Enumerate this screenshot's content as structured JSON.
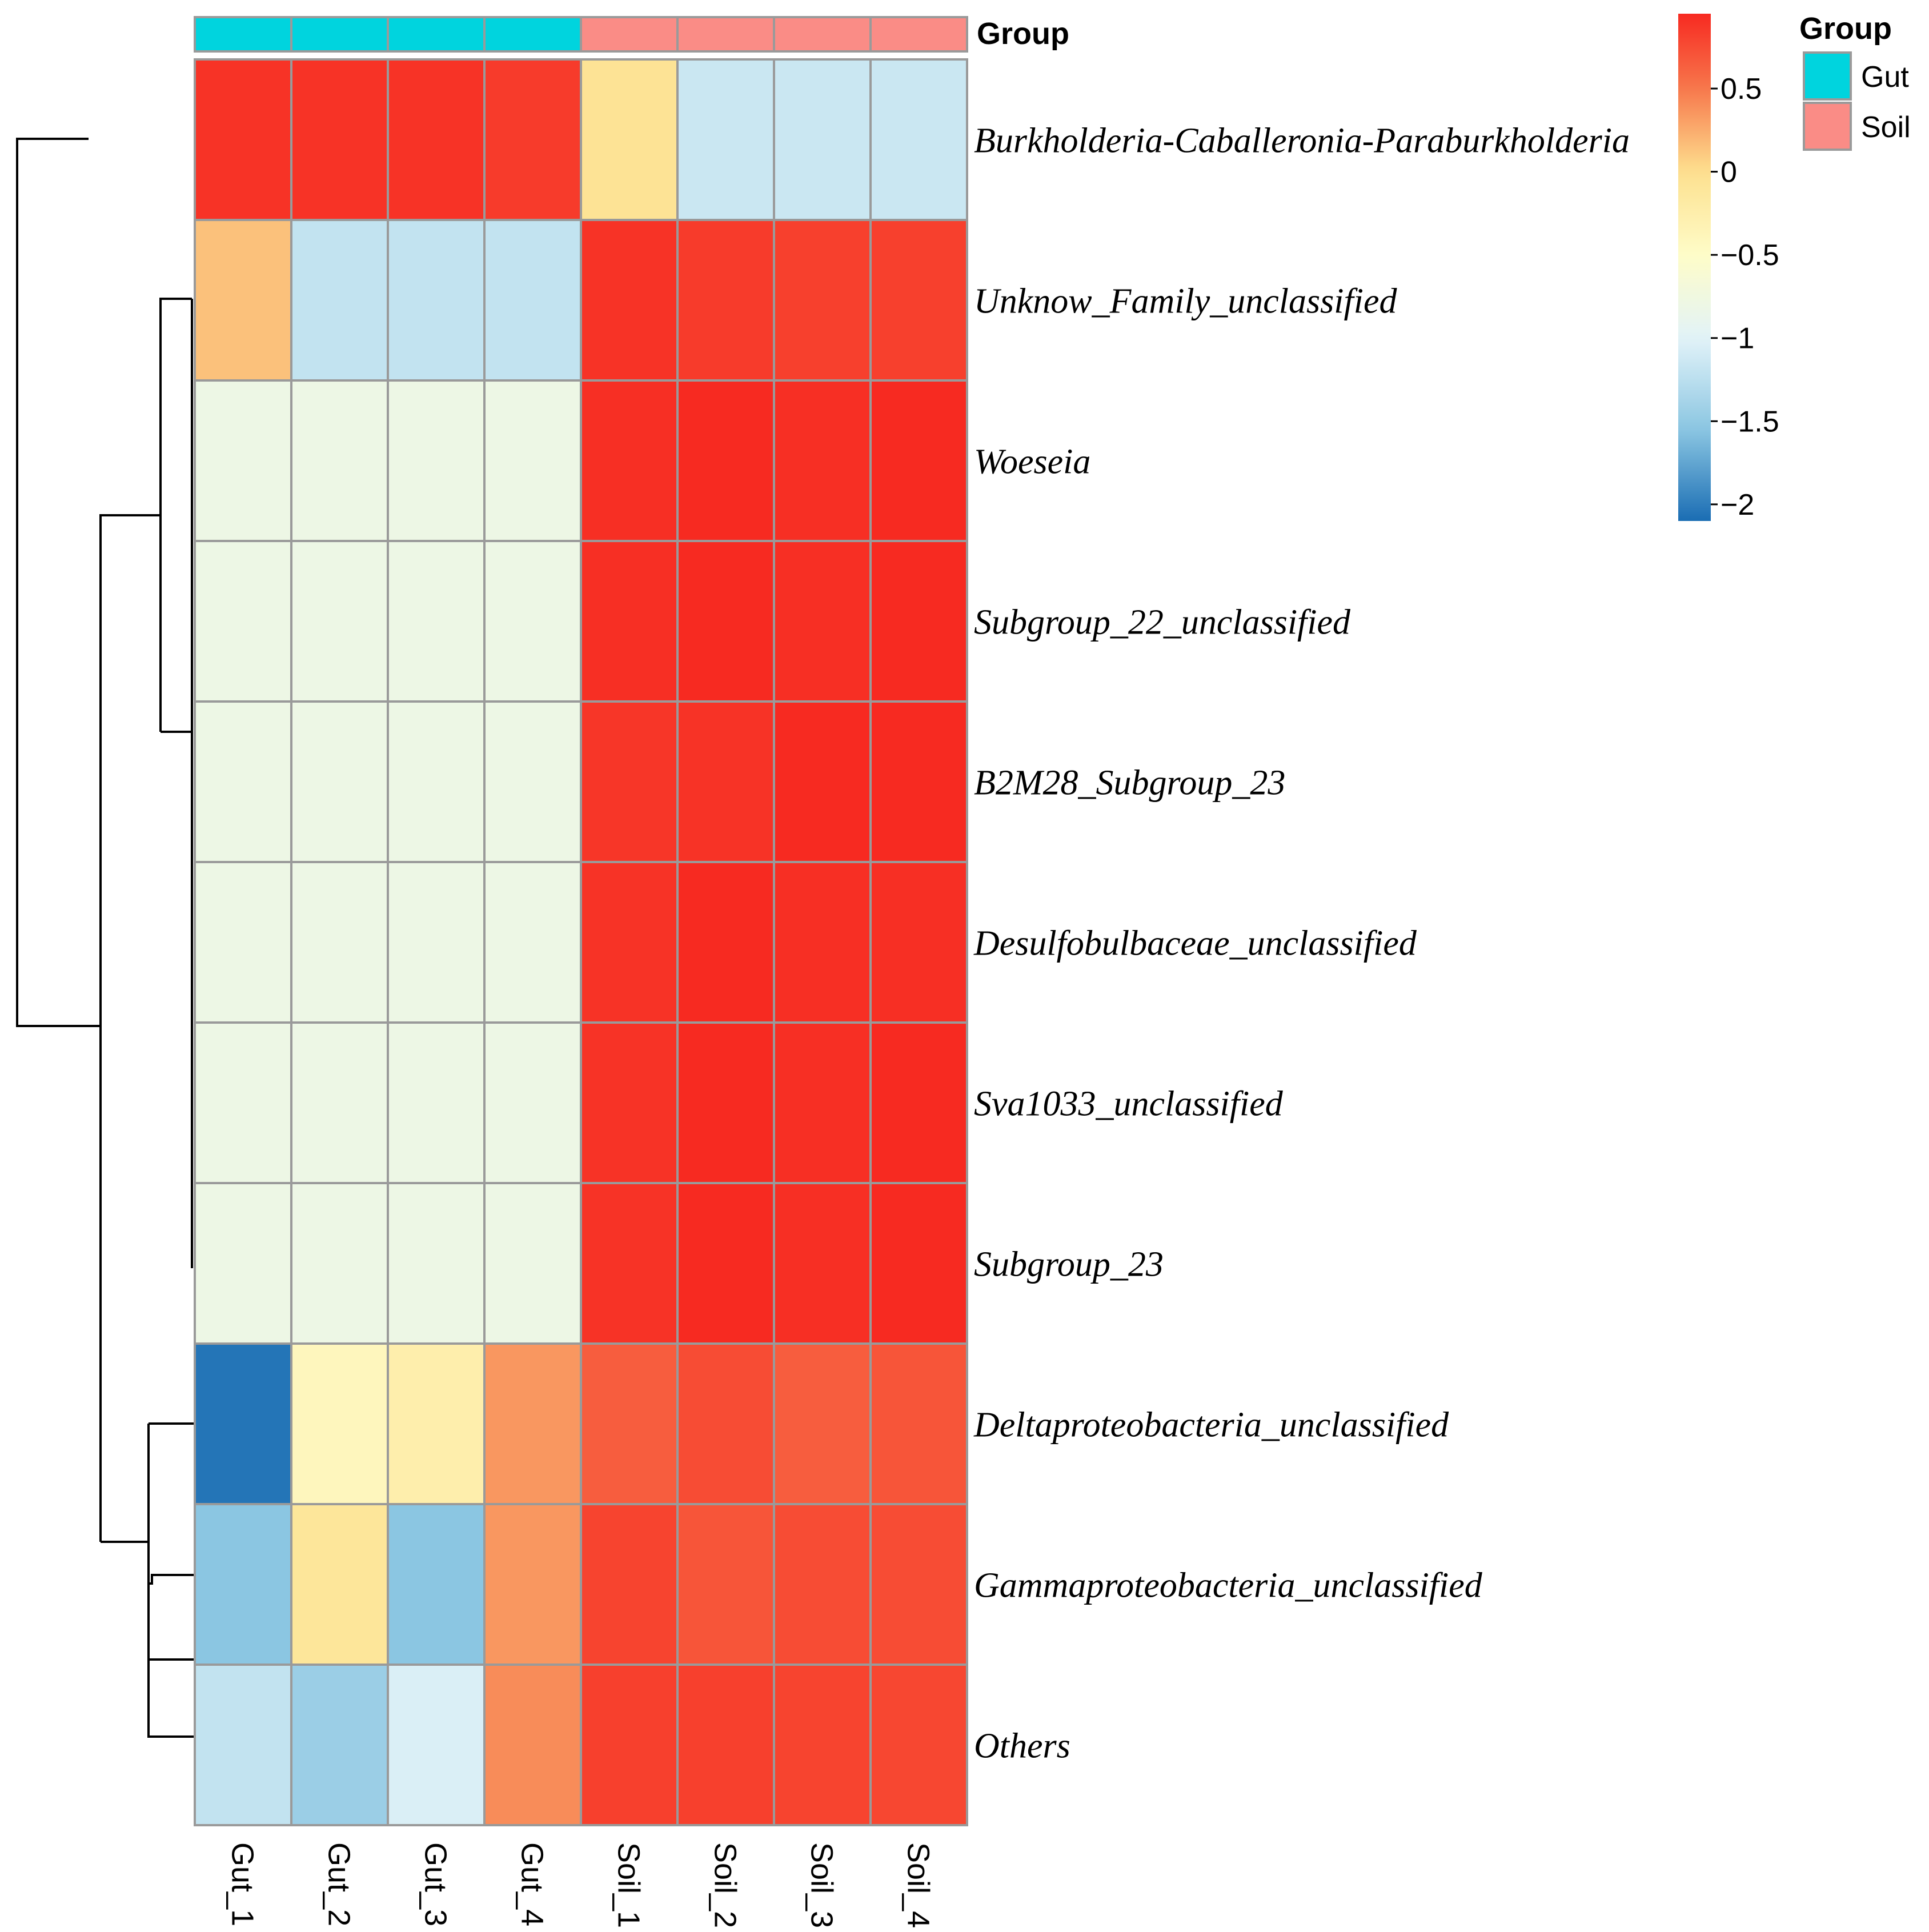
{
  "chart_data": {
    "type": "heatmap",
    "title": "",
    "columns": [
      "Gut_1",
      "Gut_2",
      "Gut_3",
      "Gut_4",
      "Soil_1",
      "Soil_2",
      "Soil_3",
      "Soil_4"
    ],
    "column_groups": [
      "Gut",
      "Gut",
      "Gut",
      "Gut",
      "Soil",
      "Soil",
      "Soil",
      "Soil"
    ],
    "rows": [
      "Burkholderia-Caballeronia-Paraburkholderia",
      "Unknow_Family_unclassified",
      "Woeseia",
      "Subgroup_22_unclassified",
      "B2M28_Subgroup_23",
      "Desulfobulbaceae_unclassified",
      "Sva1033_unclassified",
      "Subgroup_23",
      "Deltaproteobacteria_unclassified",
      "Gammaproteobacteria_unclassified",
      "Others"
    ],
    "values": [
      [
        0.9,
        0.9,
        0.9,
        0.85,
        -0.05,
        -1.15,
        -1.15,
        -1.15
      ],
      [
        0.15,
        -1.2,
        -1.2,
        -1.2,
        0.9,
        0.85,
        0.82,
        0.82
      ],
      [
        -0.8,
        -0.8,
        -0.8,
        -0.8,
        0.92,
        0.95,
        0.92,
        0.97
      ],
      [
        -0.8,
        -0.8,
        -0.8,
        -0.8,
        0.92,
        0.95,
        0.92,
        0.95
      ],
      [
        -0.8,
        -0.8,
        -0.8,
        -0.8,
        0.88,
        0.9,
        0.97,
        0.95
      ],
      [
        -0.8,
        -0.8,
        -0.8,
        -0.8,
        0.9,
        0.95,
        0.92,
        0.92
      ],
      [
        -0.8,
        -0.8,
        -0.8,
        -0.8,
        0.9,
        0.95,
        0.92,
        0.97
      ],
      [
        -0.8,
        -0.8,
        -0.8,
        -0.8,
        0.9,
        0.97,
        0.92,
        0.97
      ],
      [
        -2.05,
        -0.4,
        -0.25,
        0.35,
        0.65,
        0.75,
        0.65,
        0.7
      ],
      [
        -1.55,
        -0.1,
        -1.55,
        0.35,
        0.8,
        0.7,
        0.75,
        0.75
      ],
      [
        -1.2,
        -1.45,
        -1.05,
        0.4,
        0.82,
        0.82,
        0.8,
        0.78
      ]
    ],
    "color_scale": {
      "range": [
        -2.1,
        0.95
      ],
      "ticks": [
        0.5,
        0,
        -0.5,
        -1,
        -1.5,
        -2
      ],
      "tick_labels": [
        "0.5",
        "0",
        "−0.5",
        "−1",
        "−1.5",
        "−2"
      ],
      "stops": [
        {
          "value": -2.1,
          "color": "#1a6db3"
        },
        {
          "value": -1.55,
          "color": "#8bc6e2"
        },
        {
          "value": -1.0,
          "color": "#e2f3f8"
        },
        {
          "value": -0.5,
          "color": "#fefcc8"
        },
        {
          "value": 0.0,
          "color": "#fde08f"
        },
        {
          "value": 0.5,
          "color": "#f7774c"
        },
        {
          "value": 0.95,
          "color": "#f72a21"
        }
      ]
    },
    "annotation": {
      "label": "Group",
      "legend_title": "Group",
      "levels": [
        {
          "name": "Gut",
          "color": "#00d4de"
        },
        {
          "name": "Soil",
          "color": "#fa8c86"
        }
      ]
    },
    "row_dendrogram": true
  }
}
